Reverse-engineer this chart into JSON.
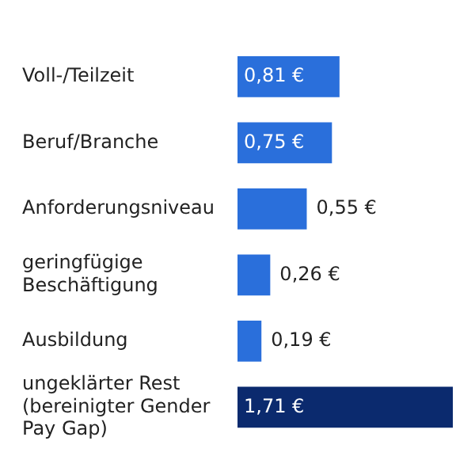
{
  "chart_data": {
    "type": "bar",
    "orientation": "horizontal",
    "categories": [
      "Voll-/Teilzeit",
      "Beruf/Branche",
      "Anforderungsniveau",
      "geringfügige Beschäftigung",
      "Ausbildung",
      "ungeklärter Rest (bereinigter Gender Pay Gap)"
    ],
    "values": [
      0.81,
      0.75,
      0.55,
      0.26,
      0.19,
      1.71
    ],
    "colors": [
      "#2a6fdb",
      "#2a6fdb",
      "#2a6fdb",
      "#2a6fdb",
      "#2a6fdb",
      "#0b2a6e"
    ],
    "value_labels": [
      "0,81 €",
      "0,75 €",
      "0,55 €",
      "0,26 €",
      "0,19 €",
      "1,71 €"
    ],
    "legend": false
  }
}
